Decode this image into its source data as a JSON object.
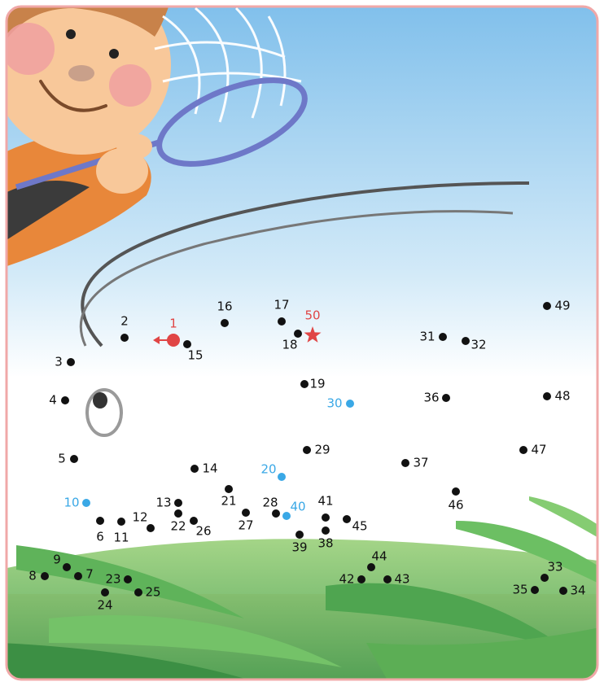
{
  "dots": [
    "1",
    "2",
    "3",
    "4",
    "5",
    "6",
    "7",
    "8",
    "9",
    "10",
    "11",
    "12",
    "13",
    "14",
    "15",
    "16",
    "17",
    "18",
    "19",
    "20",
    "21",
    "22",
    "23",
    "24",
    "25",
    "26",
    "27",
    "28",
    "29",
    "30",
    "31",
    "32",
    "33",
    "34",
    "35",
    "36",
    "37",
    "38",
    "39",
    "40",
    "41",
    "42",
    "43",
    "44",
    "45",
    "46",
    "47",
    "48",
    "49",
    "50"
  ]
}
